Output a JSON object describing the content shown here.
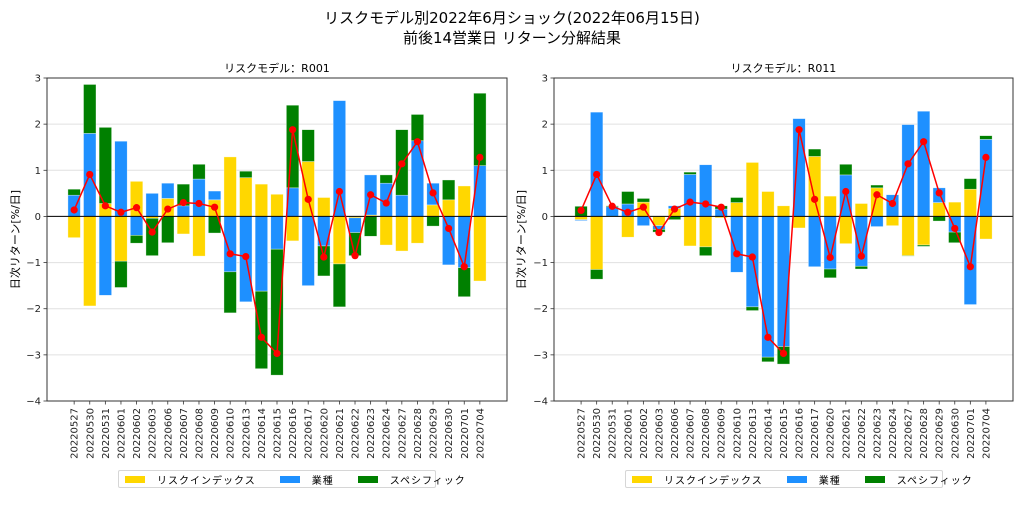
{
  "title": {
    "line1": "リスクモデル別2022年6月ショック(2022年06月15日)",
    "line2": "前後14営業日 リターン分解結果"
  },
  "colors": {
    "risk_index": "#FFD700",
    "industry": "#1E90FF",
    "specific": "#008000",
    "total_line": "#FF0000"
  },
  "legend": {
    "risk_index": "リスクインデックス",
    "industry": "業種",
    "specific": "スペシフィック"
  },
  "chart_data": [
    {
      "type": "bar",
      "stacked": true,
      "title": "リスクモデル：R001",
      "xlabel": "",
      "ylabel": "日次リターン[%/日]",
      "ylim": [
        -4,
        3
      ],
      "yticks": [
        -4,
        -3,
        -2,
        -1,
        0,
        1,
        2,
        3
      ],
      "grid": "y",
      "legend_position": "bottom-center",
      "categories": [
        "20220527",
        "20220530",
        "20220531",
        "20220601",
        "20220602",
        "20220603",
        "20220606",
        "20220607",
        "20220608",
        "20220609",
        "20220610",
        "20220613",
        "20220614",
        "20220615",
        "20220616",
        "20220617",
        "20220620",
        "20220621",
        "20220622",
        "20220623",
        "20220624",
        "20220627",
        "20220628",
        "20220629",
        "20220630",
        "20220701",
        "20220704"
      ],
      "series": [
        {
          "name": "リスクインデックス",
          "key": "risk_index",
          "values": [
            -0.46,
            -1.94,
            0.28,
            -0.97,
            0.76,
            -0.04,
            0.39,
            -0.38,
            -0.86,
            0.36,
            1.29,
            0.84,
            0.7,
            0.48,
            -0.53,
            1.19,
            0.41,
            -1.03,
            -0.03,
            0.03,
            -0.62,
            -0.75,
            -0.58,
            0.25,
            0.36,
            0.66,
            -1.4
          ]
        },
        {
          "name": "業種",
          "key": "industry",
          "values": [
            0.46,
            1.8,
            -1.71,
            1.63,
            -0.41,
            0.5,
            0.33,
            0.23,
            0.81,
            0.19,
            -1.2,
            -1.85,
            -1.62,
            -0.71,
            0.62,
            -1.5,
            -0.64,
            2.51,
            -0.32,
            0.87,
            0.72,
            0.46,
            1.64,
            0.47,
            -1.05,
            -1.11,
            1.1
          ]
        },
        {
          "name": "スペシフィック",
          "key": "specific",
          "values": [
            0.13,
            1.06,
            1.65,
            -0.57,
            -0.17,
            -0.81,
            -0.57,
            0.47,
            0.32,
            -0.36,
            -0.89,
            0.14,
            -1.68,
            -2.73,
            1.79,
            0.69,
            -0.65,
            -0.93,
            -0.5,
            -0.43,
            0.18,
            1.42,
            0.57,
            -0.21,
            0.43,
            -0.63,
            1.57
          ]
        }
      ],
      "total": {
        "name": "合計",
        "values": [
          0.14,
          0.91,
          0.23,
          0.09,
          0.19,
          -0.34,
          0.16,
          0.3,
          0.28,
          0.2,
          -0.81,
          -0.87,
          -2.62,
          -2.97,
          1.88,
          0.37,
          -0.88,
          0.54,
          -0.85,
          0.47,
          0.29,
          1.14,
          1.62,
          0.51,
          -0.26,
          -1.09,
          1.28
        ]
      }
    },
    {
      "type": "bar",
      "stacked": true,
      "title": "リスクモデル：R011",
      "xlabel": "",
      "ylabel": "日次リターン[%/日]",
      "ylim": [
        -4,
        3
      ],
      "yticks": [
        -4,
        -3,
        -2,
        -1,
        0,
        1,
        2,
        3
      ],
      "grid": "y",
      "legend_position": "bottom-center",
      "categories": [
        "20220527",
        "20220530",
        "20220531",
        "20220601",
        "20220602",
        "20220603",
        "20220606",
        "20220607",
        "20220608",
        "20220609",
        "20220610",
        "20220613",
        "20220614",
        "20220615",
        "20220616",
        "20220617",
        "20220620",
        "20220621",
        "20220622",
        "20220623",
        "20220624",
        "20220627",
        "20220628",
        "20220629",
        "20220630",
        "20220701",
        "20220704"
      ],
      "series": [
        {
          "name": "リスクインデックス",
          "key": "risk_index",
          "values": [
            -0.07,
            -1.15,
            0.0,
            -0.45,
            0.31,
            -0.2,
            0.17,
            -0.64,
            -0.66,
            -0.03,
            0.3,
            1.17,
            0.54,
            0.23,
            -0.25,
            1.3,
            0.44,
            -0.59,
            0.28,
            0.62,
            -0.2,
            -0.85,
            -0.62,
            0.3,
            0.31,
            0.59,
            -0.49
          ]
        },
        {
          "name": "業種",
          "key": "industry",
          "values": [
            -0.02,
            2.26,
            0.21,
            0.27,
            -0.2,
            -0.08,
            0.06,
            0.91,
            1.12,
            0.16,
            -1.21,
            -1.96,
            -3.05,
            -2.82,
            2.12,
            -1.09,
            -1.14,
            0.9,
            -1.08,
            -0.22,
            0.47,
            1.99,
            2.28,
            0.32,
            -0.34,
            -1.91,
            1.67
          ]
        },
        {
          "name": "スペシフィック",
          "key": "specific",
          "values": [
            0.22,
            -0.21,
            0.02,
            0.27,
            0.08,
            -0.06,
            -0.07,
            0.05,
            -0.19,
            0.07,
            0.11,
            -0.08,
            -0.1,
            -0.38,
            0.0,
            0.16,
            -0.19,
            0.23,
            -0.06,
            0.06,
            0.0,
            -0.01,
            -0.03,
            -0.1,
            -0.23,
            0.23,
            0.08
          ]
        }
      ],
      "total": {
        "name": "合計",
        "values": [
          0.13,
          0.91,
          0.22,
          0.09,
          0.2,
          -0.35,
          0.16,
          0.31,
          0.27,
          0.2,
          -0.81,
          -0.88,
          -2.62,
          -2.97,
          1.88,
          0.37,
          -0.89,
          0.54,
          -0.86,
          0.47,
          0.28,
          1.14,
          1.62,
          0.51,
          -0.26,
          -1.09,
          1.28
        ]
      }
    }
  ]
}
